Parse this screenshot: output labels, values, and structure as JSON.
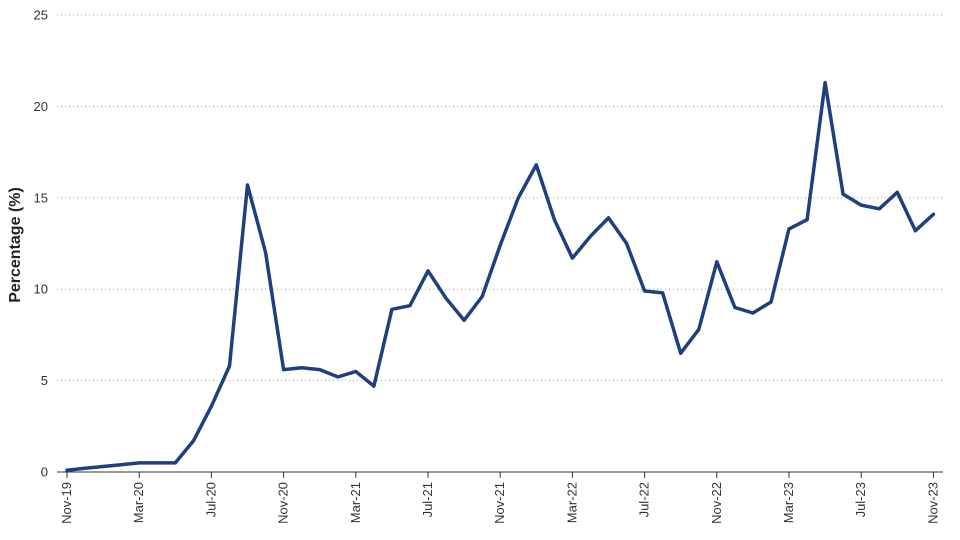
{
  "chart_data": {
    "type": "line",
    "title": "",
    "xlabel": "",
    "ylabel": "Percentage (%)",
    "ylim": [
      0,
      25
    ],
    "yticks": [
      0,
      5,
      10,
      15,
      20,
      25
    ],
    "x_tick_labels": [
      "Nov-19",
      "Mar-20",
      "Jul-20",
      "Nov-20",
      "Mar-21",
      "Jul-21",
      "Nov-21",
      "Mar-22",
      "Jul-22",
      "Nov-22",
      "Mar-23",
      "Jul-23",
      "Nov-23"
    ],
    "grid": "horizontal dotted",
    "legend": "none",
    "color": "#1f3f7f",
    "x": [
      "Nov-19",
      "Dec-19",
      "Jan-20",
      "Feb-20",
      "Mar-20",
      "Apr-20",
      "May-20",
      "Jun-20",
      "Jul-20",
      "Aug-20",
      "Sep-20",
      "Oct-20",
      "Nov-20",
      "Dec-20",
      "Jan-21",
      "Feb-21",
      "Mar-21",
      "Apr-21",
      "May-21",
      "Jun-21",
      "Jul-21",
      "Aug-21",
      "Sep-21",
      "Oct-21",
      "Nov-21",
      "Dec-21",
      "Jan-22",
      "Feb-22",
      "Mar-22",
      "Apr-22",
      "May-22",
      "Jun-22",
      "Jul-22",
      "Aug-22",
      "Sep-22",
      "Oct-22",
      "Nov-22",
      "Dec-22",
      "Jan-23",
      "Feb-23",
      "Mar-23",
      "Apr-23",
      "May-23",
      "Jun-23",
      "Jul-23",
      "Aug-23",
      "Sep-23",
      "Oct-23",
      "Nov-23"
    ],
    "series": [
      {
        "values": [
          0.1,
          0.2,
          0.3,
          0.4,
          0.5,
          0.5,
          0.5,
          1.7,
          3.6,
          5.8,
          15.7,
          12.0,
          5.6,
          5.7,
          5.6,
          5.2,
          5.5,
          4.7,
          8.9,
          9.1,
          11.0,
          9.5,
          8.3,
          9.6,
          12.4,
          15.0,
          16.8,
          13.8,
          11.7,
          12.9,
          13.9,
          12.5,
          9.9,
          9.8,
          6.5,
          7.8,
          11.5,
          9.0,
          8.7,
          9.3,
          13.3,
          13.8,
          21.3,
          15.2,
          14.6,
          14.4,
          15.3,
          13.2,
          14.1
        ]
      }
    ]
  }
}
